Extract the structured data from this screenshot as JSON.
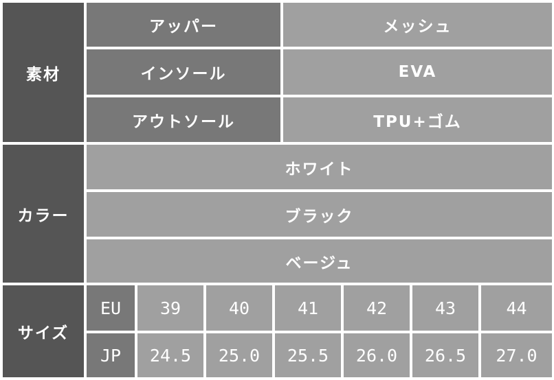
{
  "material": {
    "label": "素材",
    "rows": [
      {
        "part": "アッパー",
        "value": "メッシュ"
      },
      {
        "part": "インソール",
        "value": "EVA"
      },
      {
        "part": "アウトソール",
        "value": "TPU+ゴム"
      }
    ]
  },
  "color": {
    "label": "カラー",
    "options": [
      "ホワイト",
      "ブラック",
      "ベージュ"
    ]
  },
  "size": {
    "label": "サイズ",
    "eu_label": "EU",
    "jp_label": "JP",
    "eu": [
      "39",
      "40",
      "41",
      "42",
      "43",
      "44"
    ],
    "jp": [
      "24.5",
      "25.0",
      "25.5",
      "26.0",
      "26.5",
      "27.0"
    ]
  }
}
